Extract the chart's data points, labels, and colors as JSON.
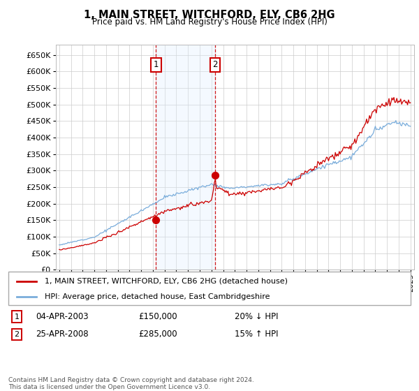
{
  "title": "1, MAIN STREET, WITCHFORD, ELY, CB6 2HG",
  "subtitle": "Price paid vs. HM Land Registry's House Price Index (HPI)",
  "red_label": "1, MAIN STREET, WITCHFORD, ELY, CB6 2HG (detached house)",
  "blue_label": "HPI: Average price, detached house, East Cambridgeshire",
  "transaction1_date": "04-APR-2003",
  "transaction1_price": "£150,000",
  "transaction1_hpi": "20% ↓ HPI",
  "transaction1_year": 2003.27,
  "transaction1_value": 150000,
  "transaction2_date": "25-APR-2008",
  "transaction2_price": "£285,000",
  "transaction2_hpi": "15% ↑ HPI",
  "transaction2_year": 2008.32,
  "transaction2_value": 285000,
  "ylim_min": 0,
  "ylim_max": 680000,
  "copyright": "Contains HM Land Registry data © Crown copyright and database right 2024.\nThis data is licensed under the Open Government Licence v3.0.",
  "background_color": "#ffffff",
  "grid_color": "#cccccc",
  "hpi_color": "#7aaddb",
  "price_color": "#cc0000",
  "shade_color": "#ddeeff",
  "num_box_color": "#cc0000"
}
